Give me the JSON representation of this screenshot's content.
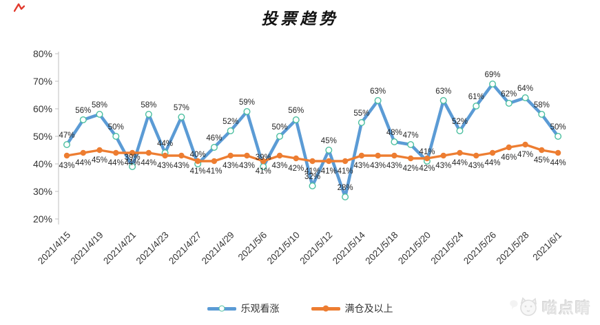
{
  "title": "投票趋势",
  "corner_mark": {
    "color": "#e23a2e"
  },
  "watermark": {
    "text": "喵点睛",
    "icon": "cat-face-with-speech-bubble",
    "color": "#e4e4e4"
  },
  "legend": [
    {
      "label": "乐观看涨",
      "color": "#5B9BD5",
      "marker": "open-circle",
      "marker_edge": "#4BBF9F"
    },
    {
      "label": "满仓及以上",
      "color": "#ED7D31",
      "marker": "filled-circle",
      "marker_edge": "#ED7D31"
    }
  ],
  "chart_data": {
    "type": "line",
    "title": "投票趋势",
    "xlabel": "",
    "ylabel": "",
    "ylim": [
      20,
      80
    ],
    "y_ticks": [
      "20%",
      "30%",
      "40%",
      "50%",
      "60%",
      "70%",
      "80%"
    ],
    "grid": false,
    "legend_position": "bottom",
    "n_points": 31,
    "x_tick_point_step": 2,
    "x_tick_labels": [
      "2021/4/15",
      "2021/4/19",
      "2021/4/21",
      "2021/4/23",
      "2021/4/27",
      "2021/4/29",
      "2021/5/6",
      "2021/5/10",
      "2021/5/12",
      "2021/5/14",
      "2021/5/18",
      "2021/5/20",
      "2021/5/24",
      "2021/5/26",
      "2021/5/28",
      "2021/6/1"
    ],
    "data_label_suffix": "%",
    "series": [
      {
        "name": "乐观看涨",
        "color": "#5B9BD5",
        "marker": "open-circle",
        "marker_edge": "#4BBF9F",
        "label_position": "above",
        "values": [
          47,
          56,
          58,
          50,
          39,
          58,
          44,
          57,
          40,
          46,
          52,
          59,
          39,
          50,
          56,
          32,
          45,
          28,
          55,
          63,
          48,
          47,
          41,
          63,
          52,
          61,
          69,
          62,
          64,
          58,
          50
        ]
      },
      {
        "name": "满仓及以上",
        "color": "#ED7D31",
        "marker": "filled-circle",
        "marker_edge": "#ED7D31",
        "label_position": "below",
        "values": [
          43,
          44,
          45,
          44,
          44,
          44,
          43,
          43,
          41,
          41,
          43,
          43,
          41,
          43,
          42,
          41,
          41,
          41,
          43,
          43,
          43,
          42,
          42,
          43,
          44,
          43,
          44,
          46,
          47,
          45,
          44
        ]
      }
    ]
  }
}
